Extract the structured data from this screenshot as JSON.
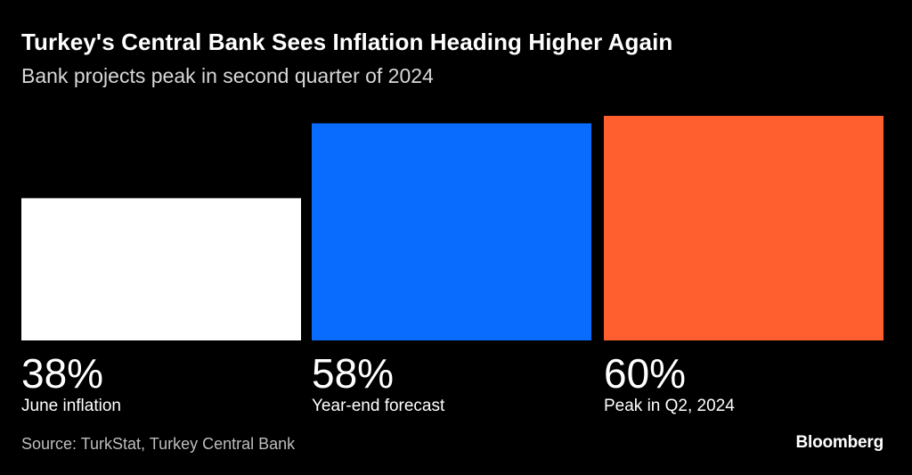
{
  "header": {
    "title": "Turkey's Central Bank Sees Inflation Heading Higher Again",
    "subtitle": "Bank projects peak in second quarter of 2024"
  },
  "footer": {
    "source": "Source: TurkStat, Turkey Central Bank",
    "logo": "Bloomberg"
  },
  "chart_data": {
    "type": "bar",
    "categories": [
      "June inflation",
      "Year-end forecast",
      "Peak in Q2, 2024"
    ],
    "values": [
      38,
      58,
      60
    ],
    "value_labels": [
      "38%",
      "58%",
      "60%"
    ],
    "colors": [
      "#ffffff",
      "#0a6cff",
      "#ff5f2e"
    ],
    "ylim": [
      0,
      60
    ],
    "grid": false,
    "legend": "none"
  }
}
